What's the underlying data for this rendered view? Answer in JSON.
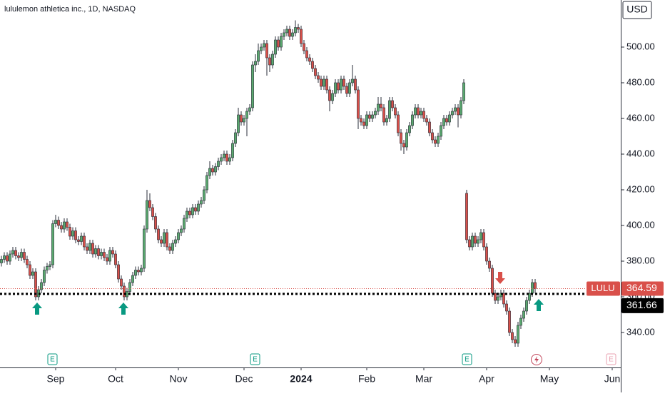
{
  "chart_data": {
    "type": "candlestick",
    "title": "lululemon athletica inc., 1D, NASDAQ",
    "currency": "USD",
    "symbol": "LULU",
    "last_price": 364.59,
    "level": 361.66,
    "earnings_label": "E",
    "up_color": "#5aa96f",
    "down_color": "#d9504a",
    "xlim": [
      -0.5,
      217
    ],
    "xticks": [
      {
        "value": 19,
        "label": "Sep"
      },
      {
        "value": 40,
        "label": "Oct"
      },
      {
        "value": 62,
        "label": "Nov"
      },
      {
        "value": 85,
        "label": "Dec"
      },
      {
        "value": 105,
        "label": "2024"
      },
      {
        "value": 128,
        "label": "Feb"
      },
      {
        "value": 148,
        "label": "Mar"
      },
      {
        "value": 170,
        "label": "Apr"
      },
      {
        "value": 192,
        "label": "May"
      },
      {
        "value": 214,
        "label": "Jun"
      }
    ],
    "ylim": [
      320.4,
      526.4
    ],
    "yticks": [
      {
        "value": 340,
        "label": "340.00"
      },
      {
        "value": 360,
        "label": "360.00"
      },
      {
        "value": 380,
        "label": "380.00"
      },
      {
        "value": 400,
        "label": "400.00"
      },
      {
        "value": 420,
        "label": "420.00"
      },
      {
        "value": 440,
        "label": "440.00"
      },
      {
        "value": 460,
        "label": "460.00"
      },
      {
        "value": 480,
        "label": "480.00"
      },
      {
        "value": 500,
        "label": "500.00"
      }
    ],
    "open": [
      379,
      381,
      383,
      380,
      384,
      386,
      383,
      382,
      385,
      381,
      378,
      372,
      374,
      360,
      364,
      368,
      375,
      377,
      378,
      401,
      403,
      400,
      398,
      402,
      399,
      394,
      397,
      392,
      391,
      394,
      388,
      386,
      390,
      384,
      387,
      383,
      385,
      382,
      380,
      386,
      384,
      378,
      370,
      366,
      360,
      363,
      368,
      372,
      375,
      374,
      376,
      398,
      414,
      410,
      405,
      398,
      392,
      390,
      396,
      388,
      386,
      390,
      392,
      396,
      398,
      404,
      408,
      406,
      410,
      408,
      412,
      414,
      420,
      428,
      432,
      430,
      433,
      436,
      438,
      440,
      436,
      438,
      446,
      452,
      462,
      458,
      460,
      464,
      466,
      490,
      492,
      498,
      500,
      502,
      494,
      490,
      496,
      504,
      500,
      506,
      508,
      510,
      506,
      508,
      511,
      510,
      502,
      498,
      494,
      492,
      488,
      484,
      482,
      478,
      482,
      476,
      470,
      474,
      480,
      476,
      482,
      478,
      474,
      480,
      482,
      476,
      460,
      458,
      456,
      462,
      460,
      462,
      464,
      468,
      466,
      458,
      460,
      470,
      466,
      462,
      452,
      446,
      444,
      452,
      456,
      462,
      466,
      462,
      464,
      460,
      458,
      452,
      448,
      446,
      450,
      456,
      460,
      458,
      462,
      464,
      466,
      462,
      470,
      418,
      392,
      388,
      394,
      390,
      392,
      396,
      388,
      380,
      376,
      362,
      358,
      360,
      362,
      356,
      352,
      340,
      336,
      334,
      344,
      348,
      352,
      358,
      362,
      368
    ],
    "high": [
      383,
      385,
      385,
      386,
      388,
      388,
      385,
      387,
      387,
      383,
      380,
      376,
      376,
      366,
      370,
      377,
      379,
      380,
      403,
      406,
      405,
      402,
      404,
      404,
      401,
      399,
      399,
      394,
      396,
      396,
      390,
      392,
      392,
      389,
      389,
      387,
      387,
      384,
      388,
      388,
      386,
      380,
      372,
      368,
      365,
      370,
      374,
      377,
      377,
      378,
      400,
      420,
      418,
      412,
      407,
      400,
      394,
      398,
      398,
      390,
      392,
      394,
      398,
      400,
      406,
      410,
      410,
      412,
      412,
      414,
      416,
      422,
      430,
      436,
      434,
      435,
      438,
      440,
      442,
      442,
      440,
      448,
      454,
      466,
      464,
      462,
      466,
      468,
      492,
      496,
      502,
      502,
      504,
      504,
      496,
      498,
      506,
      506,
      508,
      510,
      512,
      512,
      510,
      515,
      513,
      512,
      504,
      500,
      496,
      494,
      490,
      486,
      484,
      484,
      484,
      478,
      476,
      482,
      482,
      484,
      484,
      480,
      482,
      490,
      484,
      478,
      462,
      460,
      464,
      464,
      464,
      466,
      472,
      472,
      468,
      462,
      472,
      472,
      468,
      464,
      454,
      448,
      454,
      458,
      464,
      468,
      468,
      466,
      466,
      462,
      460,
      454,
      450,
      452,
      458,
      462,
      462,
      464,
      466,
      468,
      468,
      472,
      482,
      420,
      394,
      396,
      396,
      394,
      398,
      398,
      390,
      382,
      378,
      364,
      362,
      364,
      364,
      358,
      354,
      342,
      338,
      346,
      350,
      354,
      360,
      364,
      370,
      370
    ],
    "low": [
      377,
      379,
      378,
      378,
      382,
      381,
      380,
      380,
      379,
      376,
      370,
      370,
      358,
      358,
      362,
      366,
      373,
      375,
      376,
      399,
      398,
      396,
      396,
      397,
      392,
      392,
      390,
      389,
      389,
      386,
      384,
      384,
      382,
      382,
      381,
      381,
      380,
      378,
      378,
      382,
      376,
      368,
      364,
      358,
      358,
      361,
      366,
      370,
      372,
      372,
      374,
      396,
      408,
      403,
      396,
      390,
      388,
      388,
      386,
      384,
      384,
      388,
      390,
      394,
      396,
      402,
      404,
      404,
      406,
      406,
      410,
      412,
      418,
      426,
      428,
      428,
      431,
      434,
      436,
      434,
      434,
      436,
      444,
      450,
      456,
      456,
      450,
      462,
      464,
      486,
      490,
      496,
      498,
      484,
      486,
      488,
      494,
      498,
      498,
      504,
      506,
      504,
      504,
      506,
      508,
      500,
      496,
      492,
      490,
      486,
      482,
      480,
      476,
      476,
      474,
      464,
      468,
      472,
      474,
      474,
      476,
      472,
      472,
      478,
      474,
      454,
      456,
      454,
      454,
      458,
      458,
      460,
      462,
      464,
      456,
      456,
      458,
      464,
      460,
      450,
      442,
      440,
      442,
      450,
      454,
      460,
      460,
      460,
      458,
      456,
      450,
      446,
      444,
      444,
      448,
      454,
      456,
      456,
      460,
      462,
      455,
      460,
      468,
      390,
      386,
      386,
      388,
      388,
      390,
      386,
      378,
      374,
      360,
      356,
      356,
      358,
      354,
      350,
      338,
      334,
      332,
      332,
      342,
      346,
      350,
      356,
      360,
      362
    ],
    "close": [
      381,
      383,
      380,
      384,
      386,
      383,
      382,
      385,
      381,
      378,
      372,
      374,
      360,
      364,
      368,
      375,
      377,
      378,
      401,
      403,
      400,
      398,
      402,
      399,
      394,
      397,
      392,
      391,
      394,
      388,
      386,
      390,
      384,
      387,
      383,
      385,
      382,
      380,
      386,
      384,
      378,
      370,
      366,
      360,
      363,
      368,
      372,
      375,
      374,
      376,
      398,
      414,
      410,
      405,
      398,
      392,
      390,
      396,
      388,
      386,
      390,
      392,
      396,
      398,
      404,
      408,
      406,
      410,
      408,
      412,
      414,
      420,
      428,
      432,
      430,
      433,
      436,
      438,
      440,
      436,
      438,
      446,
      452,
      462,
      458,
      460,
      464,
      466,
      490,
      492,
      498,
      500,
      502,
      494,
      490,
      496,
      504,
      500,
      506,
      508,
      510,
      506,
      508,
      511,
      510,
      502,
      498,
      494,
      492,
      488,
      484,
      482,
      478,
      482,
      476,
      470,
      474,
      480,
      476,
      482,
      478,
      474,
      480,
      482,
      476,
      460,
      458,
      456,
      462,
      460,
      462,
      464,
      468,
      466,
      458,
      460,
      470,
      466,
      462,
      452,
      446,
      444,
      452,
      456,
      462,
      466,
      462,
      464,
      460,
      458,
      452,
      448,
      446,
      450,
      456,
      460,
      458,
      462,
      464,
      466,
      462,
      470,
      480,
      392,
      388,
      394,
      390,
      392,
      396,
      388,
      380,
      376,
      362,
      358,
      360,
      362,
      356,
      352,
      340,
      336,
      334,
      344,
      348,
      352,
      358,
      362,
      368,
      364.59
    ]
  }
}
